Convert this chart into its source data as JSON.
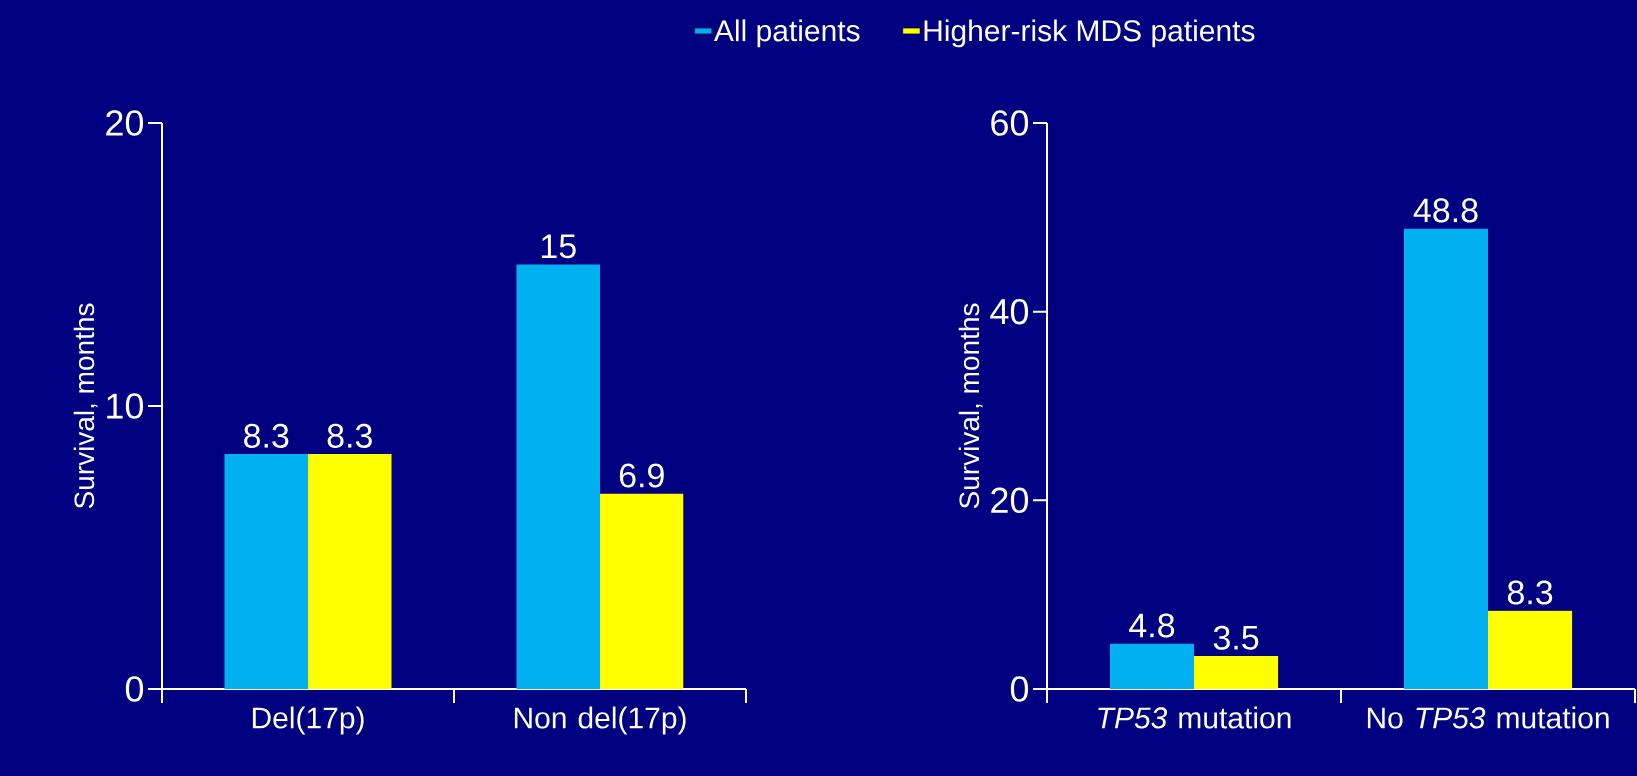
{
  "chart_data": [
    {
      "type": "bar",
      "categories": [
        "Del(17p)",
        "Non del(17p)"
      ],
      "ylabel": "Survival, months",
      "ylim": [
        0,
        20
      ],
      "yticks": [
        0,
        10,
        20
      ],
      "legend": "top",
      "data_labels": true,
      "series": [
        {
          "name": "All patients",
          "color": "#00b0f0",
          "values": [
            8.3,
            15
          ]
        },
        {
          "name": "Higher-risk MDS patients",
          "color": "#ffff00",
          "values": [
            8.3,
            6.9
          ]
        }
      ]
    },
    {
      "type": "bar",
      "categories": [
        "*TP53* mutation",
        "No *TP53* mutation"
      ],
      "ylabel": "Survival, months",
      "ylim": [
        0,
        60
      ],
      "yticks": [
        0,
        20,
        40,
        60
      ],
      "data_labels": true,
      "series": [
        {
          "color": "#00b0f0",
          "values": [
            4.8,
            48.8
          ]
        },
        {
          "color": "#ffff00",
          "values": [
            3.5,
            8.3
          ]
        }
      ]
    }
  ]
}
